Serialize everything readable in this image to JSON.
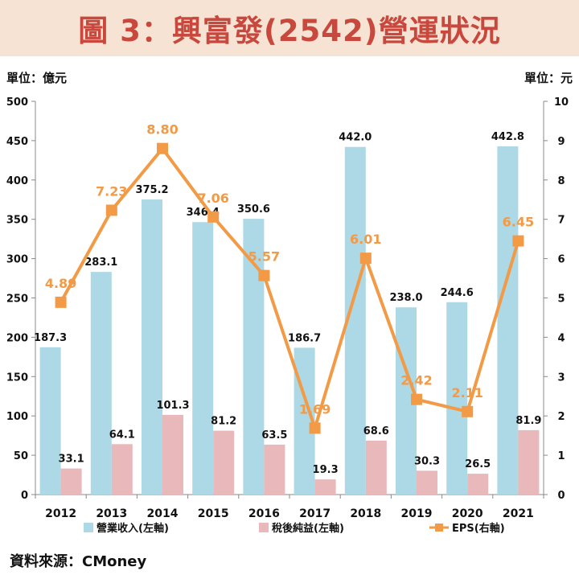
{
  "header": {
    "title": "圖 3：興富發(2542)營運狀況"
  },
  "units": {
    "left": "單位：億元",
    "right": "單位：元"
  },
  "source": "資料來源：CMoney",
  "chart_data": {
    "type": "bar",
    "categories": [
      "2012",
      "2013",
      "2014",
      "2015",
      "2016",
      "2017",
      "2018",
      "2019",
      "2020",
      "2021"
    ],
    "series": [
      {
        "name": "營業收入(左軸)",
        "type": "bar",
        "axis": "left",
        "color": "#add8e6",
        "values": [
          187.3,
          283.1,
          375.2,
          346.4,
          350.6,
          186.7,
          442.0,
          238.0,
          244.6,
          442.8
        ],
        "labels": [
          "187.3",
          "283.1",
          "375.2",
          "346.4",
          "350.6",
          "186.7",
          "442.0",
          "238.0",
          "244.6",
          "442.8"
        ]
      },
      {
        "name": "稅後純益(左軸)",
        "type": "bar",
        "axis": "left",
        "color": "#e8b8bb",
        "values": [
          33.1,
          64.1,
          101.3,
          81.2,
          63.5,
          19.3,
          68.6,
          30.3,
          26.5,
          81.9
        ],
        "labels": [
          "33.1",
          "64.1",
          "101.3",
          "81.2",
          "63.5",
          "19.3",
          "68.6",
          "30.3",
          "26.5",
          "81.9"
        ]
      },
      {
        "name": "EPS(右軸)",
        "type": "line",
        "axis": "right",
        "color": "#f29a46",
        "values": [
          4.89,
          7.23,
          8.8,
          7.06,
          5.57,
          1.69,
          6.01,
          2.42,
          2.11,
          6.45
        ],
        "labels": [
          "4.89",
          "7.23",
          "8.80",
          "7.06",
          "5.57",
          "1.69",
          "6.01",
          "2.42",
          "2.11",
          "6.45"
        ]
      }
    ],
    "yleft": {
      "min": 0,
      "max": 500,
      "ticks": [
        "0",
        "50",
        "100",
        "150",
        "200",
        "250",
        "300",
        "350",
        "400",
        "450",
        "500"
      ]
    },
    "yright": {
      "min": 0,
      "max": 10,
      "ticks": [
        "0",
        "1",
        "2",
        "3",
        "4",
        "5",
        "6",
        "7",
        "8",
        "9",
        "10"
      ]
    },
    "grid": false,
    "legend": "bottom"
  }
}
